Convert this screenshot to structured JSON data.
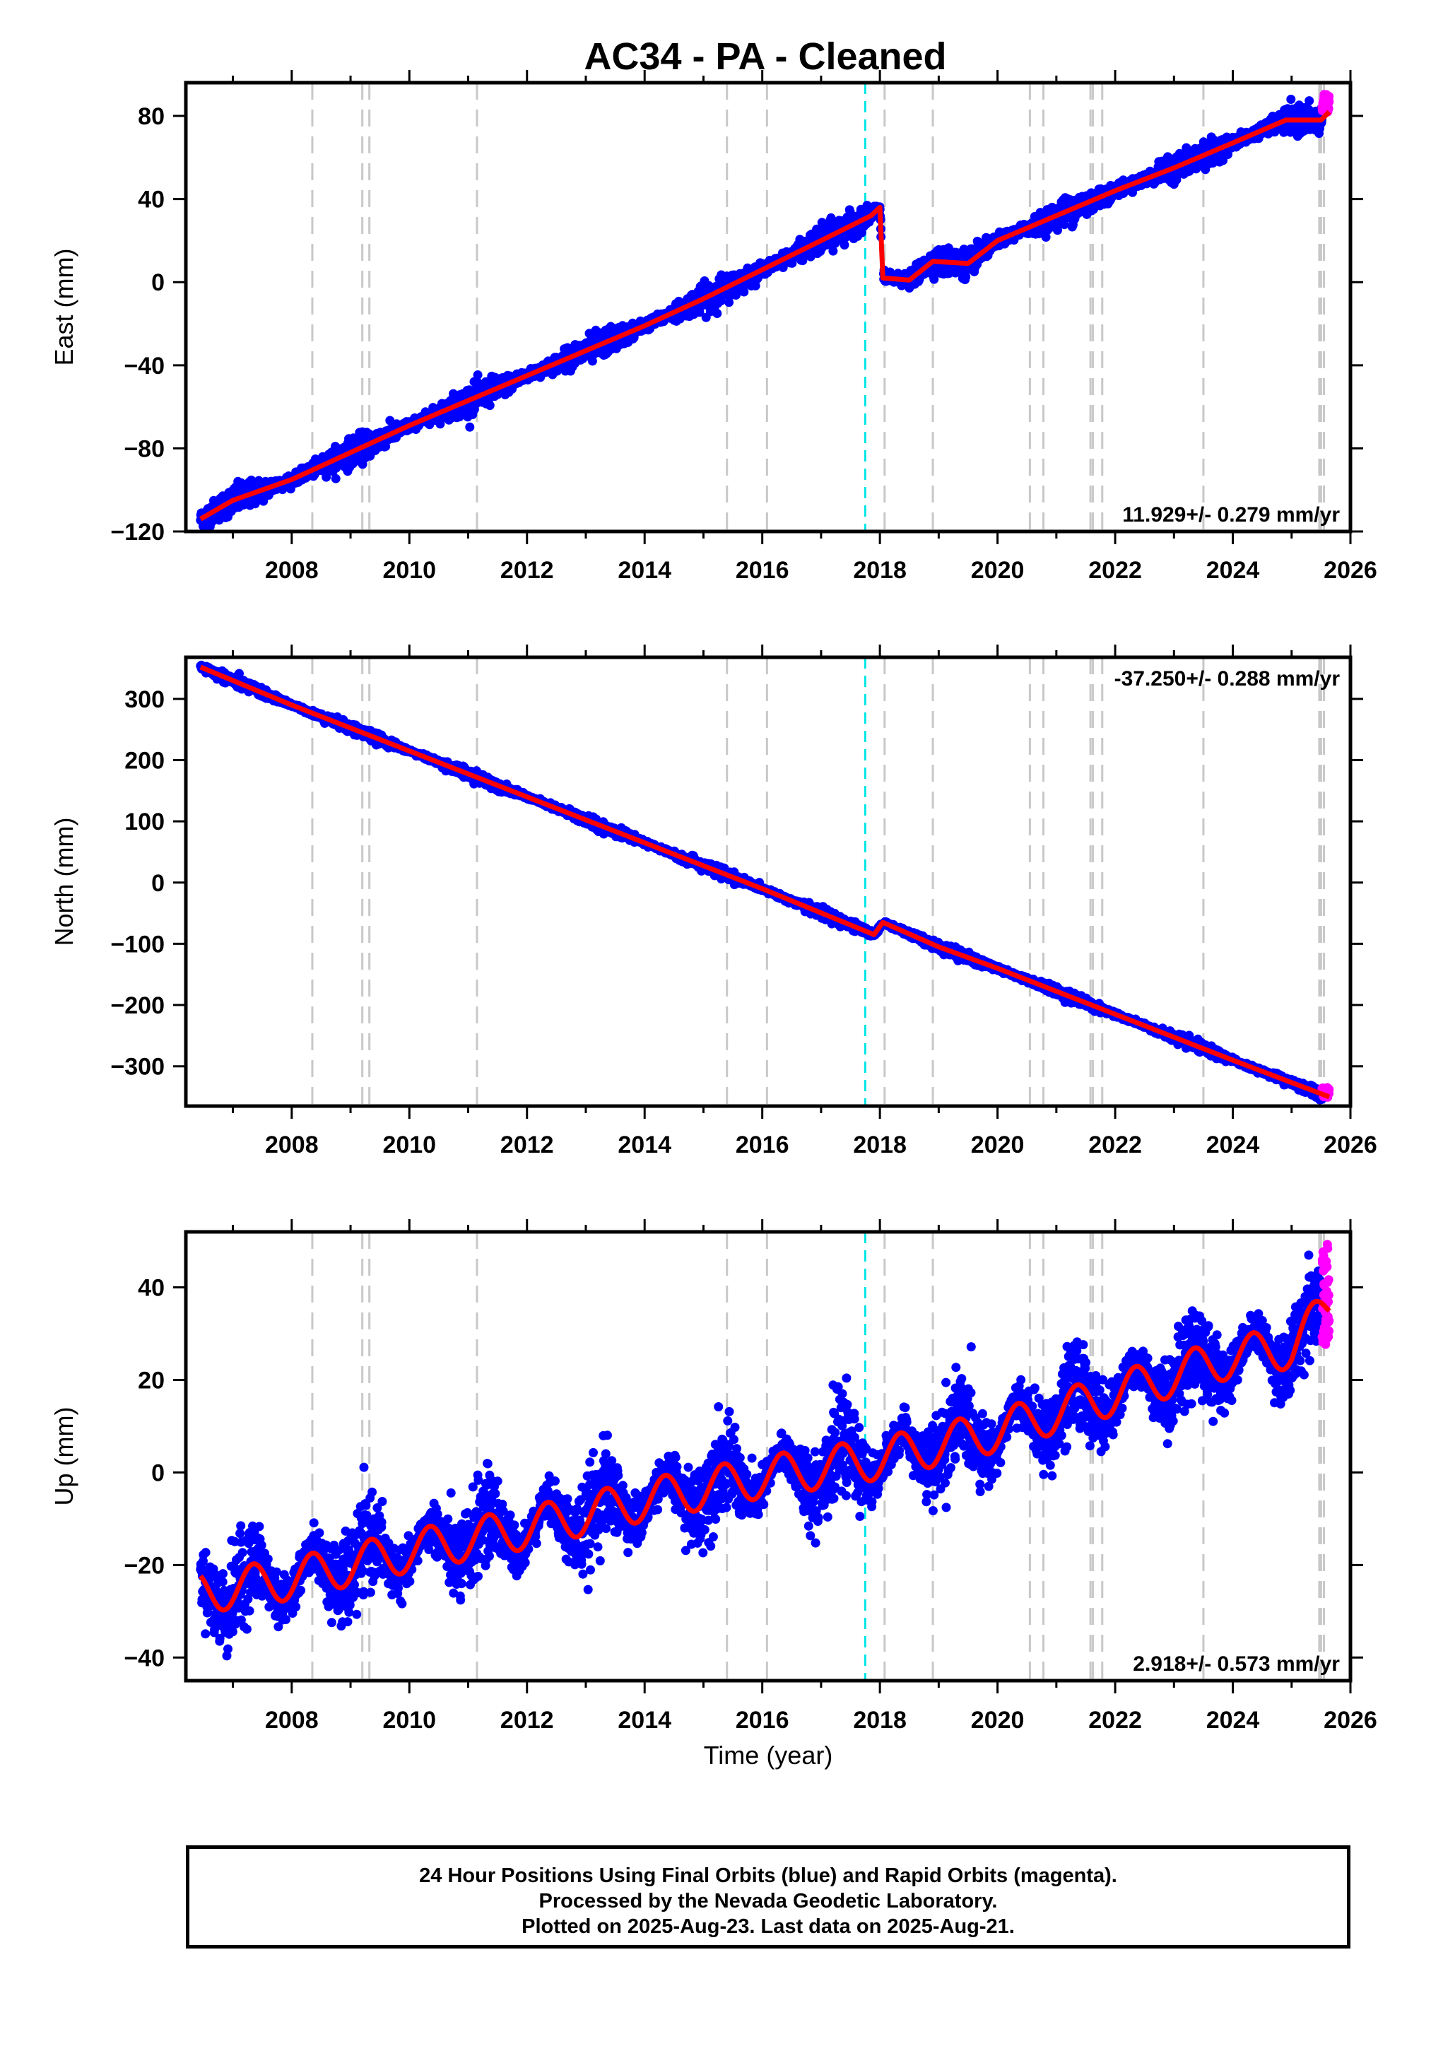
{
  "colors": {
    "final_orbits": "#0000ff",
    "rapid_orbits": "#ff00ff",
    "model": "#ff0000",
    "equipment_change": "#c8c8c8",
    "earthquake": "#00e5e5"
  },
  "footer": {
    "line1": "24 Hour Positions Using Final Orbits (blue) and Rapid Orbits (magenta).",
    "line2": "Processed by the Nevada Geodetic Laboratory.",
    "line3": "Plotted on 2025-Aug-23. Last data on 2025-Aug-21."
  },
  "chart_data": {
    "type": "scatter",
    "title": "AC34  - PA - Cleaned",
    "xlabel": "Time (year)",
    "xlim": [
      2006.2,
      2026.0
    ],
    "x_ticks": [
      2008,
      2010,
      2012,
      2014,
      2016,
      2018,
      2020,
      2022,
      2024,
      2026
    ],
    "data_span": [
      2006.45,
      2025.64
    ],
    "rapid_span": [
      2025.52,
      2025.64
    ],
    "equipment_changes": [
      2008.35,
      2009.2,
      2009.32,
      2011.15,
      2015.4,
      2016.08,
      2018.08,
      2018.9,
      2020.55,
      2020.78,
      2021.58,
      2021.62,
      2021.78,
      2023.5,
      2025.47,
      2025.5,
      2025.55
    ],
    "earthquakes": [
      2017.75
    ],
    "panels": [
      {
        "id": "east",
        "ylabel": "East (mm)",
        "ylim": [
          -120,
          96
        ],
        "y_ticks": [
          -120,
          -80,
          -40,
          0,
          40,
          80
        ],
        "y_tick_labels": [
          "−120",
          "−80",
          "−40",
          "0",
          "40",
          "80"
        ],
        "velocity": "11.929+/- 0.279 mm/yr",
        "label_position": "bottom-right",
        "model": {
          "x": [
            2006.45,
            2007.0,
            2008.0,
            2009.0,
            2010.0,
            2011.0,
            2012.0,
            2013.0,
            2014.0,
            2015.0,
            2016.0,
            2017.0,
            2017.85,
            2018.0,
            2018.05,
            2018.5,
            2018.9,
            2019.5,
            2020.0,
            2021.0,
            2022.0,
            2023.0,
            2024.0,
            2024.9,
            2025.5,
            2025.64
          ],
          "y": [
            -114,
            -105,
            -95,
            -82,
            -69,
            -57,
            -45,
            -33,
            -21,
            -8,
            6,
            20,
            32,
            36,
            2,
            1,
            10,
            9,
            20,
            32,
            44,
            55,
            67,
            78,
            78,
            82
          ]
        },
        "noise": 3.0,
        "rapid": {
          "y0": 82,
          "y1": 90
        }
      },
      {
        "id": "north",
        "ylabel": "North (mm)",
        "ylim": [
          -365,
          368
        ],
        "y_ticks": [
          -300,
          -200,
          -100,
          0,
          100,
          200,
          300
        ],
        "y_tick_labels": [
          "−300",
          "−200",
          "−100",
          "0",
          "100",
          "200",
          "300"
        ],
        "velocity": "-37.250+/- 0.288 mm/yr",
        "label_position": "top-right",
        "model": {
          "x": [
            2006.45,
            2008.0,
            2010.0,
            2012.0,
            2014.0,
            2016.0,
            2017.9,
            2018.05,
            2019.0,
            2020.0,
            2022.0,
            2024.0,
            2025.64
          ],
          "y": [
            352,
            290,
            215,
            140,
            65,
            -10,
            -85,
            -65,
            -105,
            -140,
            -215,
            -290,
            -350
          ]
        },
        "noise": 4.0,
        "rapid": {
          "y0": -335,
          "y1": -350
        }
      },
      {
        "id": "up",
        "ylabel": "Up (mm)",
        "ylim": [
          -45,
          52
        ],
        "y_ticks": [
          -40,
          -20,
          0,
          20,
          40
        ],
        "y_tick_labels": [
          "−40",
          "−20",
          "0",
          "20",
          "40"
        ],
        "velocity": "2.918+/- 0.573 mm/yr",
        "label_position": "bottom-right",
        "model": {
          "x": [
            2006.45,
            2008.0,
            2010.0,
            2012.0,
            2014.0,
            2016.0,
            2018.0,
            2020.0,
            2022.0,
            2024.0,
            2025.0,
            2025.64
          ],
          "y": [
            -26,
            -23,
            -17,
            -12,
            -6,
            -1,
            3,
            9,
            17,
            25,
            27,
            36
          ],
          "seasonal_amplitude": 4.5
        },
        "noise": 4.5,
        "rapid": {
          "y0": 28,
          "y1": 49
        }
      }
    ]
  }
}
